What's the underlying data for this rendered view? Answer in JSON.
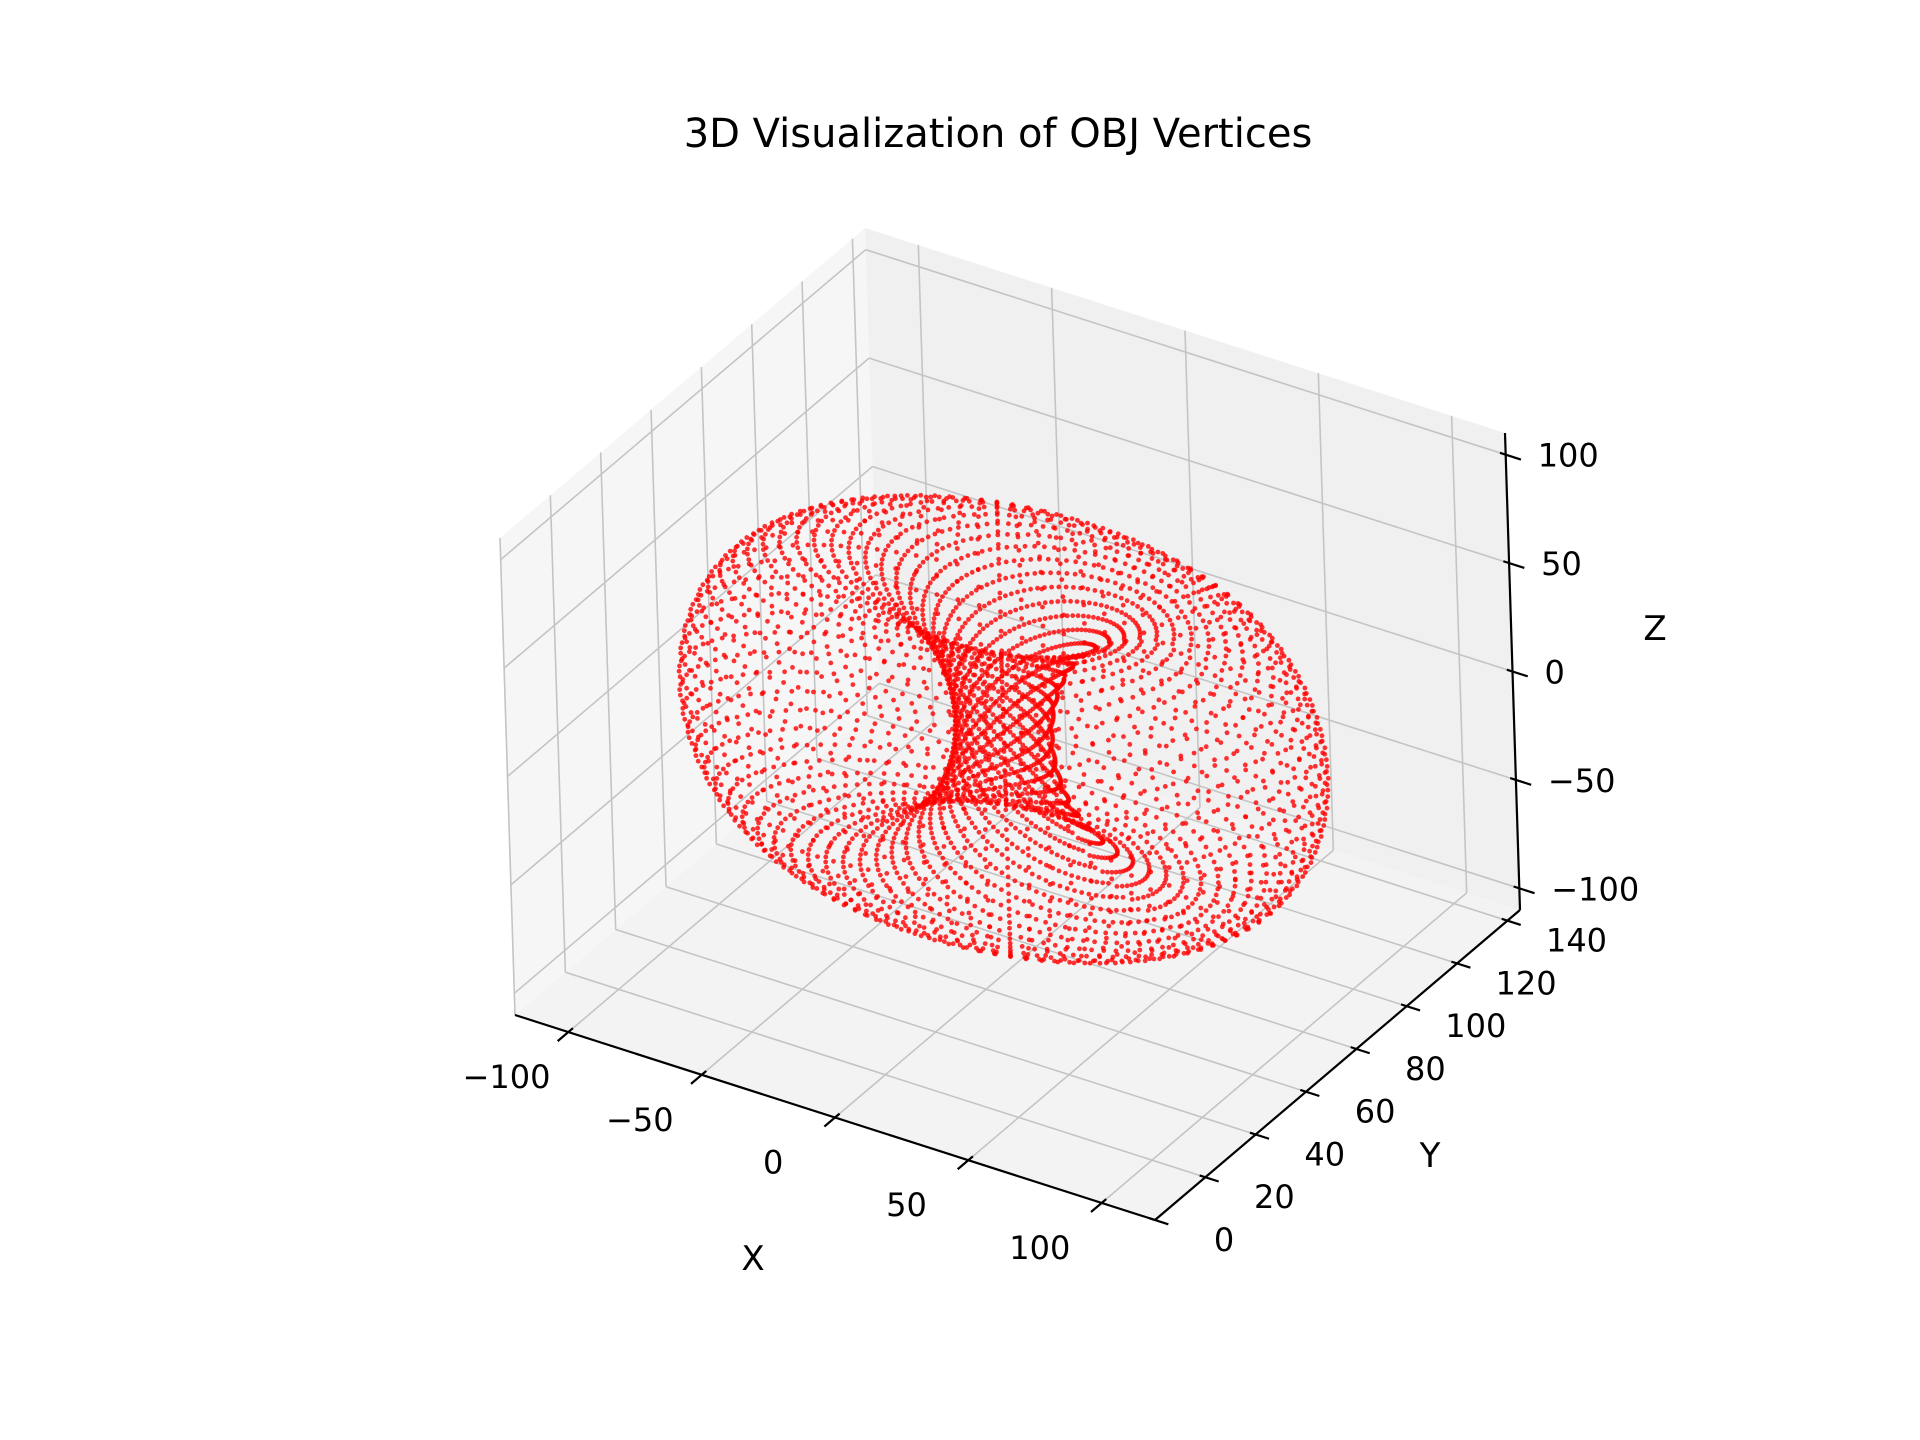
{
  "chart_data": {
    "type": "scatter",
    "subtype": "3d-scatter",
    "title": "3D Visualization of OBJ Vertices",
    "xlabel": "X",
    "ylabel": "Y",
    "zlabel": "Z",
    "xlim": [
      -120,
      120
    ],
    "ylim": [
      0,
      145
    ],
    "zlim": [
      -110,
      110
    ],
    "x_ticks": [
      {
        "value": -100,
        "label": "−100"
      },
      {
        "value": -50,
        "label": "−50"
      },
      {
        "value": 0,
        "label": "0"
      },
      {
        "value": 50,
        "label": "50"
      },
      {
        "value": 100,
        "label": "100"
      }
    ],
    "y_ticks": [
      {
        "value": 0,
        "label": "0"
      },
      {
        "value": 20,
        "label": "20"
      },
      {
        "value": 40,
        "label": "40"
      },
      {
        "value": 60,
        "label": "60"
      },
      {
        "value": 80,
        "label": "80"
      },
      {
        "value": 100,
        "label": "100"
      },
      {
        "value": 120,
        "label": "120"
      },
      {
        "value": 140,
        "label": "140"
      }
    ],
    "z_ticks": [
      {
        "value": -100,
        "label": "−100"
      },
      {
        "value": -50,
        "label": "−50"
      },
      {
        "value": 0,
        "label": "0"
      },
      {
        "value": 50,
        "label": "50"
      },
      {
        "value": 100,
        "label": "100"
      }
    ],
    "grid": true,
    "marker_color": "#ff0000",
    "pane_colors": {
      "back": "#f0f0f0",
      "side": "#f6f6f6",
      "floor": "#f3f3f3"
    },
    "series": [
      {
        "shape": "torus-like point cloud (OBJ vertices)",
        "center": [
          0,
          70,
          0
        ],
        "major_radius": 65,
        "minor_radius": 48,
        "u_samples": 96,
        "v_samples": 48,
        "x_range": [
          -113,
          113
        ],
        "y_range": [
          22,
          118
        ],
        "z_range": [
          -65,
          65
        ]
      }
    ]
  }
}
